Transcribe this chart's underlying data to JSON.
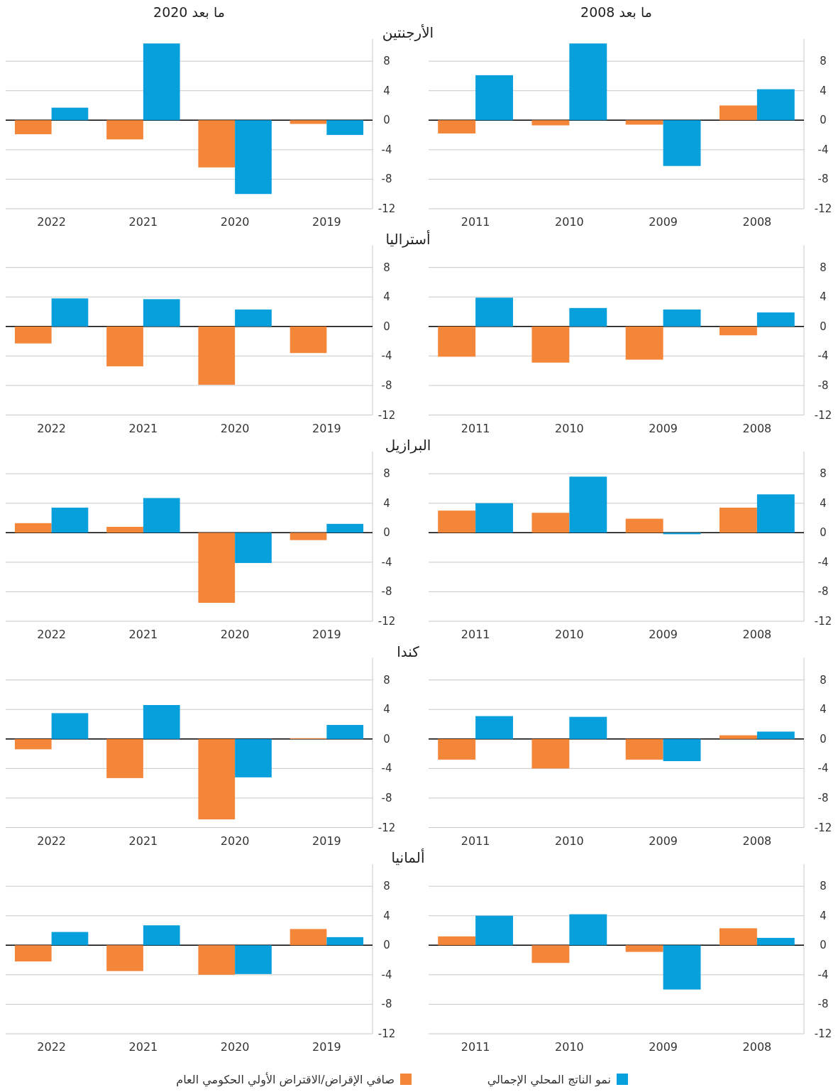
{
  "chart_data": [
    {
      "type": "bar",
      "title": "الأرجنتين",
      "subtitle": "ما بعد 2020",
      "categories": [
        "2022",
        "2021",
        "2020",
        "2019"
      ],
      "series": [
        {
          "color": "#f4863a",
          "values": [
            -1.9,
            -2.6,
            -6.4,
            -0.5
          ]
        },
        {
          "color": "#079fdc",
          "values": [
            1.7,
            10.4,
            -10.0,
            -2.0
          ]
        }
      ],
      "ylim": [
        -12,
        11
      ],
      "yticks": [
        -12,
        -8,
        -4,
        0,
        4,
        8
      ],
      "grid": "y"
    },
    {
      "type": "bar",
      "subtitle": "ما بعد 2008",
      "categories": [
        "2011",
        "2010",
        "2009",
        "2008"
      ],
      "series": [
        {
          "color": "#f4863a",
          "values": [
            -1.8,
            -0.7,
            -0.6,
            2.0
          ]
        },
        {
          "color": "#079fdc",
          "values": [
            6.1,
            10.4,
            -6.2,
            4.2
          ]
        }
      ],
      "ylim": [
        -12,
        11
      ],
      "yticks": [
        -12,
        -8,
        -4,
        0,
        4,
        8
      ],
      "grid": "y"
    },
    {
      "type": "bar",
      "title": "أستراليا",
      "categories": [
        "2022",
        "2021",
        "2020",
        "2019"
      ],
      "series": [
        {
          "color": "#f4863a",
          "values": [
            -2.3,
            -5.4,
            -7.9,
            -3.6
          ]
        },
        {
          "color": "#079fdc",
          "values": [
            3.8,
            3.7,
            2.3,
            0
          ]
        }
      ],
      "ylim": [
        -12,
        11
      ],
      "yticks": [
        -12,
        -8,
        -4,
        0,
        4,
        8
      ],
      "grid": "y"
    },
    {
      "type": "bar",
      "categories": [
        "2011",
        "2010",
        "2009",
        "2008"
      ],
      "series": [
        {
          "color": "#f4863a",
          "values": [
            -4.1,
            -4.9,
            -4.5,
            -1.2
          ]
        },
        {
          "color": "#079fdc",
          "values": [
            3.9,
            2.5,
            2.3,
            1.9
          ]
        }
      ],
      "ylim": [
        -12,
        11
      ],
      "yticks": [
        -12,
        -8,
        -4,
        0,
        4,
        8
      ],
      "grid": "y"
    },
    {
      "type": "bar",
      "title": "البرازيل",
      "categories": [
        "2022",
        "2021",
        "2020",
        "2019"
      ],
      "series": [
        {
          "color": "#f4863a",
          "values": [
            1.3,
            0.8,
            -9.5,
            -1.0
          ]
        },
        {
          "color": "#079fdc",
          "values": [
            3.4,
            4.7,
            -4.1,
            1.2
          ]
        }
      ],
      "ylim": [
        -12,
        11
      ],
      "yticks": [
        -12,
        -8,
        -4,
        0,
        4,
        8
      ],
      "grid": "y"
    },
    {
      "type": "bar",
      "categories": [
        "2011",
        "2010",
        "2009",
        "2008"
      ],
      "series": [
        {
          "color": "#f4863a",
          "values": [
            3.0,
            2.7,
            1.9,
            3.4
          ]
        },
        {
          "color": "#079fdc",
          "values": [
            4.0,
            7.6,
            -0.2,
            5.2
          ]
        }
      ],
      "ylim": [
        -12,
        11
      ],
      "yticks": [
        -12,
        -8,
        -4,
        0,
        4,
        8
      ],
      "grid": "y"
    },
    {
      "type": "bar",
      "title": "كندا",
      "categories": [
        "2022",
        "2021",
        "2020",
        "2019"
      ],
      "series": [
        {
          "color": "#f4863a",
          "values": [
            -1.4,
            -5.3,
            -10.9,
            0.1
          ]
        },
        {
          "color": "#079fdc",
          "values": [
            3.5,
            4.6,
            -5.2,
            1.9
          ]
        }
      ],
      "ylim": [
        -12,
        11
      ],
      "yticks": [
        -12,
        -8,
        -4,
        0,
        4,
        8
      ],
      "grid": "y"
    },
    {
      "type": "bar",
      "categories": [
        "2011",
        "2010",
        "2009",
        "2008"
      ],
      "series": [
        {
          "color": "#f4863a",
          "values": [
            -2.8,
            -4.0,
            -2.8,
            0.5
          ]
        },
        {
          "color": "#079fdc",
          "values": [
            3.1,
            3.0,
            -3.0,
            1.0
          ]
        }
      ],
      "ylim": [
        -12,
        11
      ],
      "yticks": [
        -12,
        -8,
        -4,
        0,
        4,
        8
      ],
      "grid": "y"
    },
    {
      "type": "bar",
      "title": "ألمانيا",
      "categories": [
        "2022",
        "2021",
        "2020",
        "2019"
      ],
      "series": [
        {
          "color": "#f4863a",
          "values": [
            -2.2,
            -3.5,
            -4.0,
            2.2
          ]
        },
        {
          "color": "#079fdc",
          "values": [
            1.8,
            2.7,
            -3.9,
            1.1
          ]
        }
      ],
      "ylim": [
        -12,
        11
      ],
      "yticks": [
        -12,
        -8,
        -4,
        0,
        4,
        8
      ],
      "grid": "y"
    },
    {
      "type": "bar",
      "categories": [
        "2011",
        "2010",
        "2009",
        "2008"
      ],
      "series": [
        {
          "name": "صافي الإقراض/الاقتراض الأولي الحكومي العام",
          "color": "#f4863a",
          "values": [
            1.2,
            -2.4,
            -0.9,
            2.3
          ]
        },
        {
          "name": "نمو الناتج المحلي الإجمالي",
          "color": "#079fdc",
          "values": [
            4.0,
            4.2,
            -6.0,
            1.0
          ]
        }
      ],
      "ylim": [
        -12,
        11
      ],
      "yticks": [
        -12,
        -8,
        -4,
        0,
        4,
        8
      ],
      "grid": "y",
      "legend": "bottom"
    }
  ]
}
